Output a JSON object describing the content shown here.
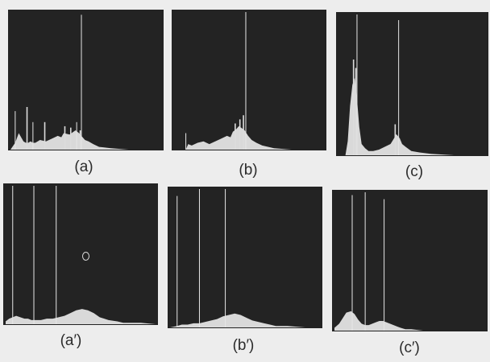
{
  "chart_data": [
    {
      "type": "area",
      "caption": "(a)",
      "xlim": [
        0,
        255
      ],
      "ylim": [
        0,
        1
      ],
      "x": [
        0,
        8,
        14,
        18,
        22,
        26,
        30,
        34,
        38,
        42,
        50,
        60,
        70,
        80,
        86,
        90,
        100,
        110,
        116,
        120,
        126,
        132,
        140,
        150,
        170,
        200,
        255
      ],
      "y": [
        0,
        0.05,
        0.12,
        0.09,
        0.06,
        0.05,
        0.05,
        0.06,
        0.05,
        0.05,
        0.07,
        0.06,
        0.08,
        0.1,
        0.09,
        0.12,
        0.11,
        0.14,
        0.12,
        0.1,
        0.07,
        0.06,
        0.04,
        0.02,
        0.01,
        0,
        0
      ],
      "spikes": [
        {
          "x": 28,
          "y": 0.31
        },
        {
          "x": 58,
          "y": 0.2
        },
        {
          "x": 92,
          "y": 0.17
        },
        {
          "x": 102,
          "y": 0.16
        },
        {
          "x": 118,
          "y": 0.14
        }
      ],
      "lines": [
        {
          "x": 8,
          "y": 0.28
        },
        {
          "x": 38,
          "y": 0.2
        },
        {
          "x": 112,
          "y": 0.2
        },
        {
          "x": 120,
          "y": 0.98
        }
      ]
    },
    {
      "type": "area",
      "caption": "(b)",
      "xlim": [
        0,
        255
      ],
      "ylim": [
        0,
        1
      ],
      "x": [
        0,
        20,
        24,
        30,
        40,
        50,
        60,
        70,
        80,
        90,
        96,
        100,
        106,
        110,
        114,
        120,
        126,
        132,
        140,
        150,
        170,
        200,
        255
      ],
      "y": [
        0,
        0,
        0.04,
        0.03,
        0.05,
        0.06,
        0.04,
        0.06,
        0.08,
        0.1,
        0.09,
        0.13,
        0.15,
        0.17,
        0.16,
        0.14,
        0.1,
        0.07,
        0.05,
        0.03,
        0.01,
        0,
        0
      ],
      "spikes": [
        {
          "x": 104,
          "y": 0.19
        },
        {
          "x": 112,
          "y": 0.22
        },
        {
          "x": 118,
          "y": 0.25
        }
      ],
      "lines": [
        {
          "x": 20,
          "y": 0.12
        },
        {
          "x": 122,
          "y": 1.0
        }
      ]
    },
    {
      "type": "area",
      "caption": "(c)",
      "xlim": [
        0,
        255
      ],
      "ylim": [
        0,
        1
      ],
      "x": [
        0,
        12,
        16,
        20,
        24,
        28,
        32,
        36,
        40,
        46,
        52,
        60,
        70,
        80,
        90,
        96,
        100,
        106,
        110,
        116,
        126,
        140,
        160,
        200,
        255
      ],
      "y": [
        0,
        0,
        0.1,
        0.35,
        0.5,
        0.55,
        0.4,
        0.2,
        0.08,
        0.05,
        0.03,
        0.03,
        0.04,
        0.06,
        0.08,
        0.12,
        0.15,
        0.12,
        0.08,
        0.06,
        0.03,
        0.02,
        0.01,
        0,
        0
      ],
      "spikes": [
        {
          "x": 26,
          "y": 0.68
        },
        {
          "x": 30,
          "y": 0.62
        },
        {
          "x": 98,
          "y": 0.22
        }
      ],
      "lines": [
        {
          "x": 32,
          "y": 1.0
        },
        {
          "x": 104,
          "y": 0.96
        }
      ]
    },
    {
      "type": "area",
      "caption": "(a′)",
      "xlim": [
        0,
        255
      ],
      "ylim": [
        0,
        1
      ],
      "x": [
        0,
        6,
        12,
        18,
        25,
        32,
        38,
        44,
        50,
        60,
        70,
        80,
        90,
        100,
        110,
        120,
        130,
        140,
        150,
        160,
        175,
        190,
        200,
        230,
        255
      ],
      "y": [
        0.02,
        0.04,
        0.05,
        0.06,
        0.05,
        0.04,
        0.04,
        0.03,
        0.03,
        0.03,
        0.04,
        0.04,
        0.05,
        0.06,
        0.08,
        0.1,
        0.11,
        0.1,
        0.08,
        0.05,
        0.03,
        0.02,
        0.01,
        0.01,
        0
      ],
      "spikes": [],
      "lines": [
        {
          "x": 12,
          "y": 1.0
        },
        {
          "x": 48,
          "y": 1.0
        },
        {
          "x": 86,
          "y": 1.0
        }
      ]
    },
    {
      "type": "area",
      "caption": "(b′)",
      "xlim": [
        0,
        255
      ],
      "ylim": [
        0,
        1
      ],
      "x": [
        0,
        12,
        20,
        30,
        40,
        50,
        60,
        70,
        80,
        90,
        100,
        110,
        120,
        130,
        140,
        150,
        160,
        170,
        180,
        190,
        200,
        230,
        255
      ],
      "y": [
        0,
        0.01,
        0.02,
        0.02,
        0.03,
        0.03,
        0.04,
        0.05,
        0.06,
        0.08,
        0.09,
        0.1,
        0.09,
        0.07,
        0.05,
        0.04,
        0.03,
        0.02,
        0.01,
        0.01,
        0.01,
        0,
        0
      ],
      "spikes": [],
      "lines": [
        {
          "x": 12,
          "y": 0.95
        },
        {
          "x": 50,
          "y": 1.0
        },
        {
          "x": 94,
          "y": 1.0
        }
      ]
    },
    {
      "type": "area",
      "caption": "(c′)",
      "xlim": [
        0,
        255
      ],
      "ylim": [
        0,
        1
      ],
      "x": [
        0,
        8,
        14,
        20,
        28,
        34,
        40,
        46,
        52,
        58,
        64,
        70,
        76,
        82,
        88,
        94,
        100,
        106,
        112,
        120,
        130,
        150,
        200,
        255
      ],
      "y": [
        0.02,
        0.05,
        0.09,
        0.13,
        0.14,
        0.12,
        0.08,
        0.05,
        0.04,
        0.04,
        0.05,
        0.06,
        0.07,
        0.07,
        0.06,
        0.05,
        0.04,
        0.03,
        0.02,
        0.01,
        0.01,
        0,
        0,
        0
      ],
      "spikes": [],
      "lines": [
        {
          "x": 30,
          "y": 0.98
        },
        {
          "x": 52,
          "y": 1.0
        },
        {
          "x": 84,
          "y": 0.95
        }
      ]
    }
  ]
}
